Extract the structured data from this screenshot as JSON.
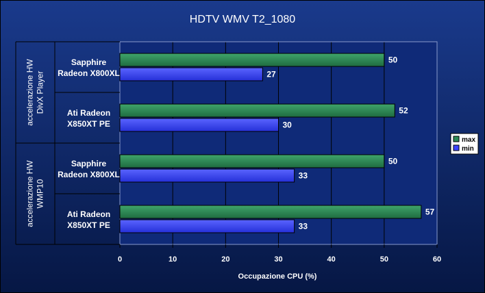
{
  "chart_data": {
    "type": "bar",
    "orientation": "horizontal",
    "title": "HDTV WMV T2_1080",
    "xlabel": "Occupazione CPU (%)",
    "ylabel": "",
    "xlim": [
      0,
      60
    ],
    "xticks": [
      0,
      10,
      20,
      30,
      40,
      50,
      60
    ],
    "grid": true,
    "legend_position": "right",
    "groups": [
      {
        "label": [
          "accelerazione HW",
          "DivX Player"
        ],
        "categories": [
          {
            "label": [
              "Sapphire",
              "Radeon X800XL"
            ],
            "max": 50,
            "min": 27
          },
          {
            "label": [
              "Ati Radeon",
              "X850XT PE"
            ],
            "max": 52,
            "min": 30
          }
        ]
      },
      {
        "label": [
          "accelerazione HW",
          "WMP10"
        ],
        "categories": [
          {
            "label": [
              "Sapphire",
              "Radeon X800XL"
            ],
            "max": 50,
            "min": 33
          },
          {
            "label": [
              "Ati Radeon",
              "X850XT PE"
            ],
            "max": 57,
            "min": 33
          }
        ]
      }
    ],
    "series": [
      {
        "name": "max",
        "color": "#2e8b57"
      },
      {
        "name": "min",
        "color": "#3b44ff"
      }
    ]
  },
  "colors": {
    "background_top": "#1a3a8c",
    "background_bottom": "#061744",
    "plot_background": "#0f2a78",
    "gridline": "#000000"
  }
}
